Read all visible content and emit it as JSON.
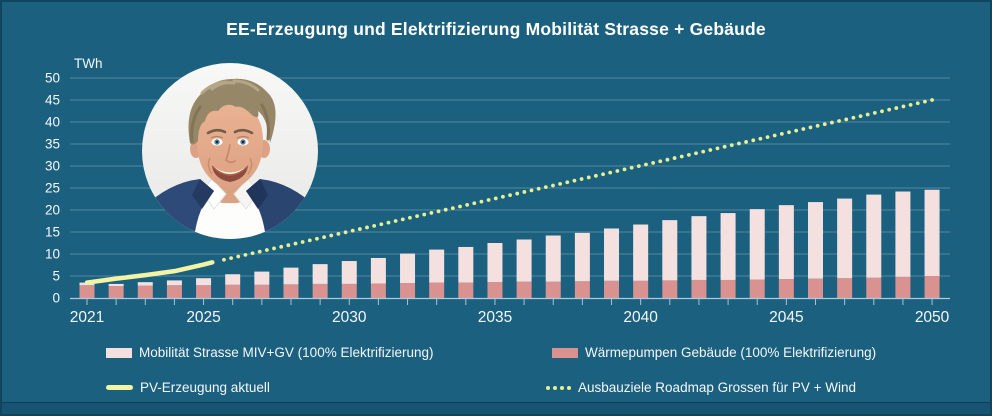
{
  "colors": {
    "background": "#1c6080",
    "grid": "rgba(210,232,240,0.30)",
    "axis": "#c8dde8",
    "text": "#ffffff",
    "mobility_bar": "#f4e0df",
    "heatpump_bar": "#d9928f",
    "pv_line": "#f2f4a3",
    "roadmap_dots": "#e6ef94"
  },
  "chart_data": {
    "type": "combo",
    "title": "EE-Erzeugung und Elektrifizierung Mobilität Strasse + Gebäude",
    "ylabel": "TWh",
    "xlabel": "",
    "grid": true,
    "legend_position": "bottom",
    "ylim": [
      0,
      50
    ],
    "y_ticks": [
      0,
      5,
      10,
      15,
      20,
      25,
      30,
      35,
      40,
      45,
      50
    ],
    "x": [
      2021,
      2022,
      2023,
      2024,
      2025,
      2026,
      2027,
      2028,
      2029,
      2030,
      2031,
      2032,
      2033,
      2034,
      2035,
      2036,
      2037,
      2038,
      2039,
      2040,
      2041,
      2042,
      2043,
      2044,
      2045,
      2046,
      2047,
      2048,
      2049,
      2050
    ],
    "x_tick_labels": [
      "2021",
      "2025",
      "2030",
      "2035",
      "2040",
      "2045",
      "2050"
    ],
    "series": [
      {
        "name": "Mobilität Strasse MIV+GV (100% Elektrifizierung)",
        "type": "bar",
        "stack": "top",
        "color": "#f4e0df",
        "values": [
          0.6,
          0.5,
          0.8,
          1.1,
          1.6,
          2.4,
          3.0,
          3.8,
          4.5,
          5.2,
          5.8,
          6.7,
          7.5,
          8.1,
          8.9,
          9.6,
          10.5,
          11.0,
          11.9,
          12.8,
          13.7,
          14.5,
          15.2,
          16.0,
          16.8,
          17.4,
          18.1,
          18.9,
          19.4,
          19.6
        ]
      },
      {
        "name": "Wärmepumpen Gebäude (100% Elektrifizierung)",
        "type": "bar",
        "stack": "bottom",
        "color": "#d9928f",
        "values": [
          2.9,
          2.7,
          2.8,
          2.9,
          2.9,
          3.0,
          3.0,
          3.1,
          3.2,
          3.2,
          3.3,
          3.4,
          3.5,
          3.5,
          3.6,
          3.7,
          3.7,
          3.8,
          3.9,
          3.9,
          4.0,
          4.1,
          4.1,
          4.2,
          4.3,
          4.4,
          4.5,
          4.6,
          4.8,
          5.0
        ]
      },
      {
        "name": "PV-Erzeugung aktuell",
        "type": "line",
        "color": "#f2f4a3",
        "x": [
          2021,
          2022,
          2023,
          2024,
          2025,
          2025.3
        ],
        "values": [
          3.5,
          4.4,
          5.2,
          6.1,
          7.6,
          8.1
        ]
      },
      {
        "name": "Ausbauziele Roadmap Grossen für PV + Wind",
        "type": "dotted",
        "color": "#e6ef94",
        "x": [
          2025.7,
          2050
        ],
        "values": [
          8.7,
          45
        ]
      }
    ]
  }
}
